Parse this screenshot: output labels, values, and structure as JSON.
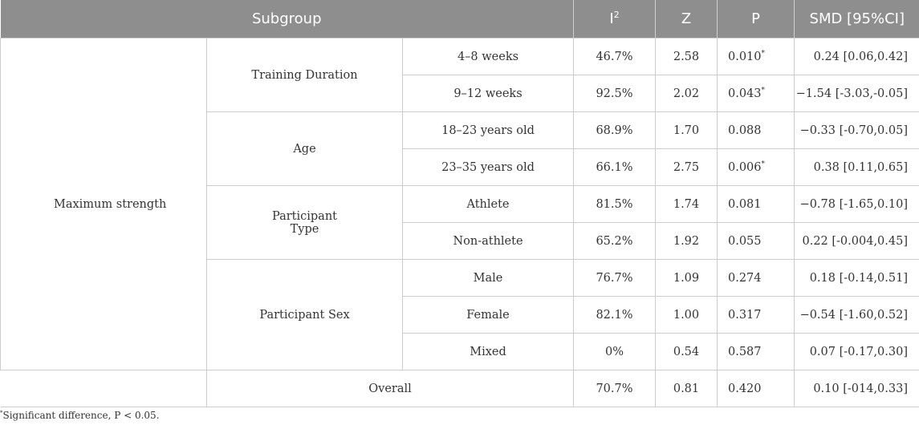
{
  "header": {
    "subgroup": "Subgroup",
    "i2_base": "I",
    "i2_sup": "2",
    "z": "Z",
    "p": "P",
    "smd": "SMD [95%CI]"
  },
  "outcome": "Maximum strength",
  "groups": [
    {
      "label": "Training Duration",
      "rows": [
        {
          "sub": "4–8 weeks",
          "i2": "46.7%",
          "z": "2.58",
          "p": "0.010",
          "star": "*",
          "smd": "0.24 [0.06,0.42]"
        },
        {
          "sub": "9–12 weeks",
          "i2": "92.5%",
          "z": "2.02",
          "p": "0.043",
          "star": "*",
          "smd": "−1.54 [-3.03,-0.05]"
        }
      ]
    },
    {
      "label": "Age",
      "rows": [
        {
          "sub": "18–23 years old",
          "i2": "68.9%",
          "z": "1.70",
          "p": "0.088",
          "star": "",
          "smd": "−0.33 [-0.70,0.05]"
        },
        {
          "sub": "23–35 years old",
          "i2": "66.1%",
          "z": "2.75",
          "p": "0.006",
          "star": "*",
          "smd": "0.38 [0.11,0.65]"
        }
      ]
    },
    {
      "label_line1": "Participant",
      "label_line2": "Type",
      "rows": [
        {
          "sub": "Athlete",
          "i2": "81.5%",
          "z": "1.74",
          "p": "0.081",
          "star": "",
          "smd": "−0.78 [-1.65,0.10]"
        },
        {
          "sub": "Non-athlete",
          "i2": "65.2%",
          "z": "1.92",
          "p": "0.055",
          "star": "",
          "smd": "0.22 [-0.004,0.45]"
        }
      ]
    },
    {
      "label": "Participant Sex",
      "rows": [
        {
          "sub": "Male",
          "i2": "76.7%",
          "z": "1.09",
          "p": "0.274",
          "star": "",
          "smd": "0.18 [-0.14,0.51]"
        },
        {
          "sub": "Female",
          "i2": "82.1%",
          "z": "1.00",
          "p": "0.317",
          "star": "",
          "smd": "−0.54 [-1.60,0.52]"
        },
        {
          "sub": "Mixed",
          "i2": "0%",
          "z": "0.54",
          "p": "0.587",
          "star": "",
          "smd": "0.07 [-0.17,0.30]"
        }
      ]
    }
  ],
  "overall": {
    "label": "Overall",
    "i2": "70.7%",
    "z": "0.81",
    "p": "0.420",
    "smd": "0.10 [-014,0.33]"
  },
  "footnote": {
    "star": "*",
    "text": "Significant difference, P < 0.05."
  }
}
